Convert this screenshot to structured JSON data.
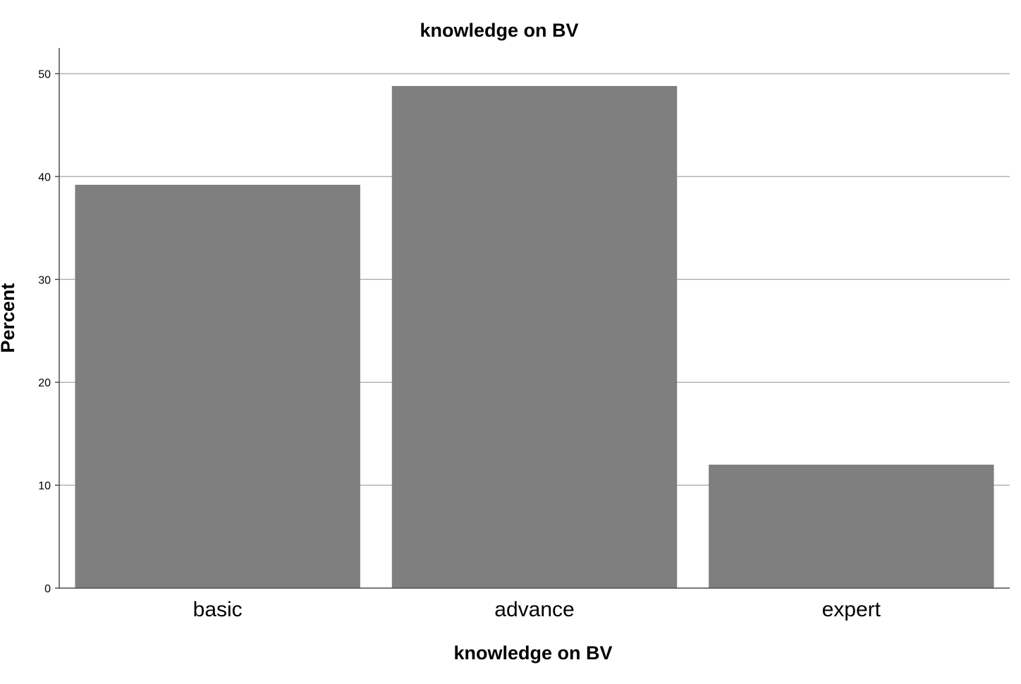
{
  "chart_data": {
    "type": "bar",
    "title": "knowledge on BV",
    "xlabel": "knowledge on BV",
    "ylabel": "Percent",
    "categories": [
      "basic",
      "advance",
      "expert"
    ],
    "values": [
      39.2,
      48.8,
      12.0
    ],
    "ylim": [
      0,
      52.5
    ],
    "yticks": [
      0,
      10,
      20,
      30,
      40,
      50
    ],
    "grid": true,
    "bar_color": "#7f7f7f",
    "grid_color": "#b3b3b3",
    "axis_color": "#4d4d4d"
  }
}
